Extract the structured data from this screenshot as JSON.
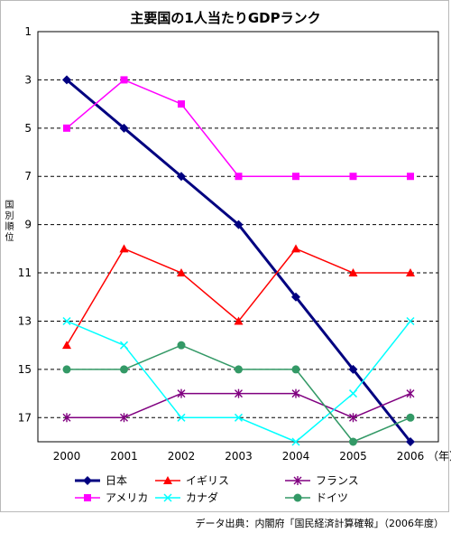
{
  "chart_data": {
    "type": "line",
    "title": "主要国の1人当たりGDPランク",
    "ylabel": "国別順位",
    "x": [
      "2000",
      "2001",
      "2002",
      "2003",
      "2004",
      "2005",
      "2006"
    ],
    "x_unit": "（年）",
    "y_ticks": [
      "1",
      "3",
      "5",
      "7",
      "9",
      "11",
      "13",
      "15",
      "17"
    ],
    "y_reversed": true,
    "ylim": [
      1,
      18
    ],
    "grid": "horizontal dashed",
    "legend_position": "bottom",
    "series": [
      {
        "name": "日本",
        "values": [
          3,
          5,
          7,
          9,
          12,
          15,
          18
        ],
        "color": "#000080",
        "marker": "diamond"
      },
      {
        "name": "イギリス",
        "values": [
          14,
          10,
          11,
          13,
          10,
          11,
          11
        ],
        "color": "#ff0000",
        "marker": "triangle"
      },
      {
        "name": "フランス",
        "values": [
          17,
          17,
          16,
          16,
          16,
          17,
          16
        ],
        "color": "#800080",
        "marker": "asterisk"
      },
      {
        "name": "アメリカ",
        "values": [
          5,
          3,
          4,
          7,
          7,
          7,
          7
        ],
        "color": "#ff00ff",
        "marker": "square"
      },
      {
        "name": "カナダ",
        "values": [
          13,
          14,
          17,
          17,
          18,
          16,
          13
        ],
        "color": "#00ffff",
        "marker": "x"
      },
      {
        "name": "ドイツ",
        "values": [
          15,
          15,
          14,
          15,
          15,
          18,
          17
        ],
        "color": "#339966",
        "marker": "circle"
      }
    ]
  },
  "source_note": "データ出典：内閣府「国民経済計算確報」（2006年度）"
}
